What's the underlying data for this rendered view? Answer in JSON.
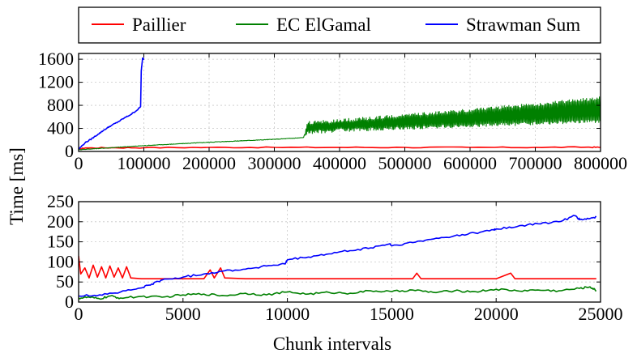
{
  "legend": {
    "entries": [
      {
        "label": "Paillier",
        "color": "#ff0000"
      },
      {
        "label": "EC ElGamal",
        "color": "#008000"
      },
      {
        "label": "Strawman Sum",
        "color": "#0000ff"
      }
    ]
  },
  "shared_labels": {
    "ylabel": "Time [ms]",
    "xlabel": "Chunk intervals"
  },
  "chart_data": [
    {
      "type": "line",
      "xlim": [
        0,
        800000
      ],
      "ylim": [
        0,
        1700
      ],
      "xticks": [
        0,
        100000,
        200000,
        300000,
        400000,
        500000,
        600000,
        700000,
        800000
      ],
      "xtick_labels": [
        "0",
        "100000",
        "200000",
        "300000",
        "400000",
        "500000",
        "600000",
        "700000",
        "800000"
      ],
      "yticks": [
        0,
        400,
        800,
        1200,
        1600
      ],
      "ytick_labels": [
        "0",
        "400",
        "800",
        "1200",
        "1600"
      ],
      "grid": true,
      "series": [
        {
          "name": "Paillier",
          "color": "#ff0000",
          "x": [
            0,
            10000,
            50000,
            100000,
            200000,
            300000,
            400000,
            500000,
            600000,
            700000,
            780000,
            800000
          ],
          "y": [
            40,
            60,
            65,
            65,
            70,
            70,
            70,
            70,
            70,
            70,
            75,
            70
          ]
        },
        {
          "name": "EC ElGamal",
          "color": "#008000",
          "x": [
            0,
            100000,
            200000,
            300000,
            345000,
            350000,
            400000,
            500000,
            600000,
            700000,
            800000
          ],
          "y": [
            30,
            100,
            160,
            210,
            240,
            520,
            560,
            650,
            740,
            840,
            950
          ],
          "y_low": [
            30,
            100,
            160,
            210,
            240,
            300,
            340,
            380,
            420,
            460,
            500
          ]
        },
        {
          "name": "Strawman Sum",
          "color": "#0000ff",
          "x": [
            0,
            10000,
            20000,
            30000,
            40000,
            50000,
            60000,
            70000,
            80000,
            90000,
            95000,
            96000,
            98000,
            100000
          ],
          "y": [
            40,
            150,
            220,
            300,
            380,
            450,
            510,
            580,
            640,
            720,
            780,
            1400,
            1620,
            1600
          ]
        }
      ]
    },
    {
      "type": "line",
      "xlim": [
        0,
        25000
      ],
      "ylim": [
        0,
        250
      ],
      "xticks": [
        0,
        5000,
        10000,
        15000,
        20000,
        25000
      ],
      "xtick_labels": [
        "0",
        "5000",
        "10000",
        "15000",
        "20000",
        "25000"
      ],
      "yticks": [
        0,
        50,
        100,
        150,
        200,
        250
      ],
      "ytick_labels": [
        "0",
        "50",
        "100",
        "150",
        "200",
        "250"
      ],
      "grid": true,
      "series": [
        {
          "name": "Paillier",
          "color": "#ff0000",
          "x": [
            0,
            100,
            300,
            500,
            700,
            900,
            1100,
            1300,
            1500,
            1700,
            1900,
            2100,
            2300,
            2500,
            3000,
            4000,
            5000,
            6000,
            6300,
            6500,
            6800,
            7000,
            8000,
            10000,
            12000,
            14000,
            16000,
            16200,
            16400,
            18000,
            20000,
            20700,
            20900,
            22000,
            24000,
            24800
          ],
          "y": [
            115,
            70,
            85,
            60,
            92,
            62,
            88,
            60,
            90,
            62,
            85,
            60,
            88,
            60,
            58,
            58,
            58,
            58,
            80,
            60,
            85,
            60,
            58,
            58,
            58,
            58,
            58,
            72,
            58,
            58,
            58,
            72,
            58,
            58,
            58,
            58
          ]
        },
        {
          "name": "EC ElGamal",
          "color": "#008000",
          "x": [
            0,
            500,
            1000,
            1500,
            2000,
            3000,
            4000,
            5000,
            6000,
            7000,
            8000,
            9000,
            10000,
            11000,
            12000,
            13000,
            14000,
            15000,
            16000,
            17000,
            18000,
            19000,
            20000,
            21000,
            22000,
            23000,
            24000,
            24500,
            24800
          ],
          "y": [
            10,
            12,
            8,
            15,
            10,
            14,
            12,
            18,
            20,
            16,
            22,
            18,
            25,
            20,
            24,
            22,
            28,
            26,
            30,
            24,
            28,
            26,
            32,
            28,
            30,
            28,
            34,
            38,
            28
          ]
        },
        {
          "name": "Strawman Sum",
          "color": "#0000ff",
          "x": [
            0,
            1000,
            2000,
            3000,
            3500,
            4000,
            5000,
            6000,
            7000,
            8000,
            9000,
            9900,
            10000,
            11000,
            12000,
            13000,
            14000,
            14900,
            15000,
            16000,
            17000,
            18000,
            19000,
            19900,
            20000,
            21000,
            22000,
            23000,
            23800,
            24000,
            24500,
            24800
          ],
          "y": [
            15,
            18,
            25,
            35,
            45,
            55,
            62,
            70,
            78,
            82,
            90,
            95,
            105,
            112,
            120,
            128,
            135,
            145,
            140,
            148,
            157,
            165,
            172,
            180,
            182,
            188,
            195,
            200,
            215,
            205,
            208,
            212
          ]
        }
      ]
    }
  ]
}
